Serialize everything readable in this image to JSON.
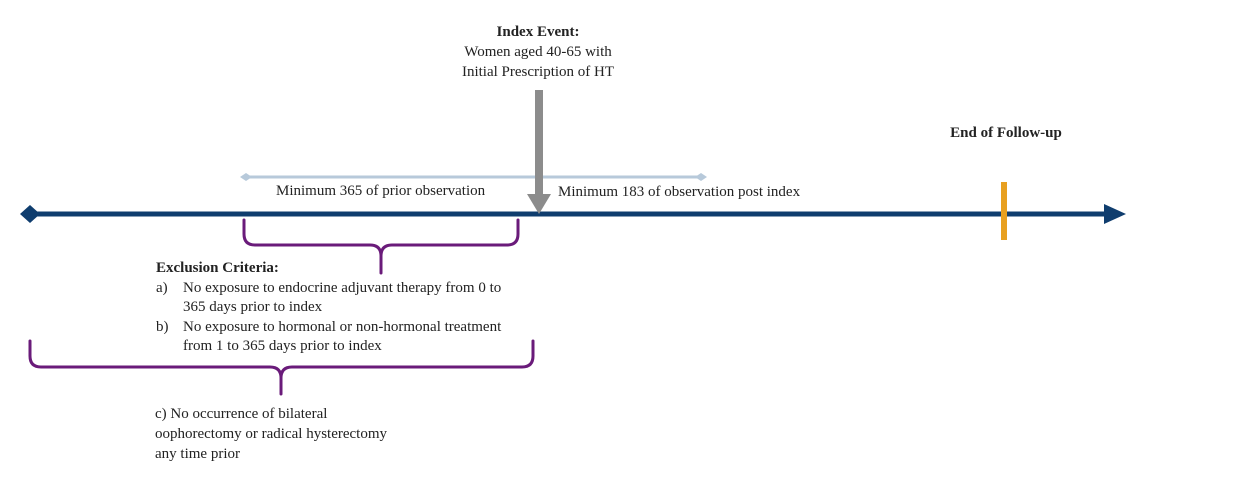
{
  "index_event": {
    "title": "Index Event:",
    "line1": "Women aged 40-65 with",
    "line2": "Initial Prescription of HT"
  },
  "end_followup": {
    "label": "End of Follow-up"
  },
  "observation": {
    "prior": "Minimum 365 of prior observation",
    "post": "Minimum 183 of observation post index"
  },
  "exclusion": {
    "title": "Exclusion Criteria:",
    "a_marker": "a)",
    "a_line1": "No exposure to endocrine adjuvant therapy from 0 to",
    "a_line2": "365 days prior to index",
    "b_marker": "b)",
    "b_line1": "No exposure to hormonal or non-hormonal treatment",
    "b_line2": "from 1 to 365 days prior to index",
    "c_line1": "c) No occurrence of bilateral",
    "c_line2": "oophorectomy or radical hysterectomy",
    "c_line3": "any time prior"
  },
  "colors": {
    "timeline": "#0f3d6e",
    "observation_line": "#b7c9da",
    "index_arrow": "#8c8c8c",
    "followup_marker": "#e8a020",
    "brace": "#6a1b7a"
  }
}
